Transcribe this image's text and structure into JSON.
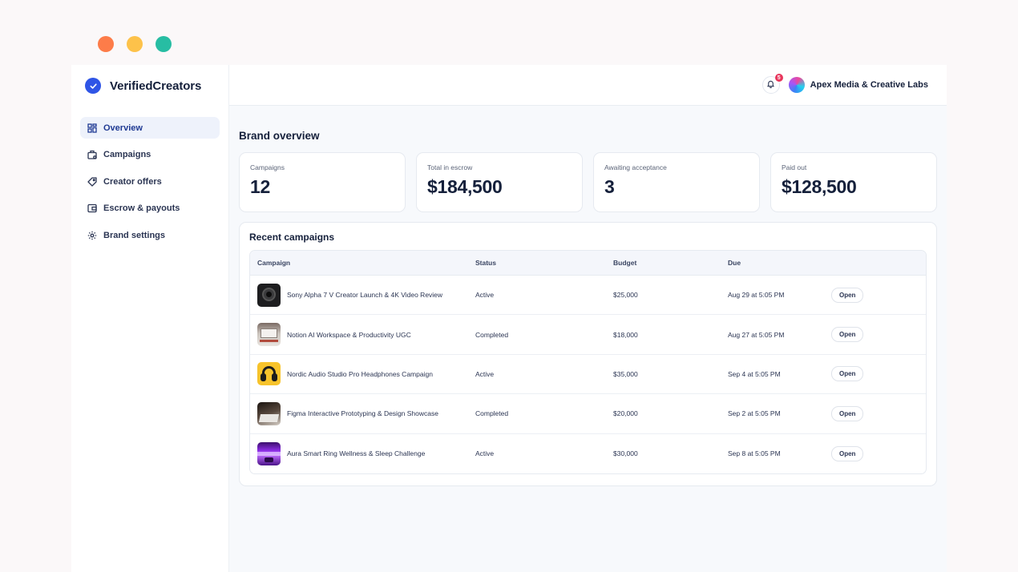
{
  "window_controls": {
    "colors": [
      "#fd7c49",
      "#fdc24a",
      "#27bda3"
    ]
  },
  "sidebar": {
    "brand": {
      "name": "VerifiedCreators",
      "icon": "check-circle-icon"
    },
    "items": [
      {
        "label": "Overview",
        "icon": "grid-icon",
        "active": true
      },
      {
        "label": "Campaigns",
        "icon": "briefcase-icon",
        "active": false
      },
      {
        "label": "Creator offers",
        "icon": "tag-icon",
        "active": false
      },
      {
        "label": "Escrow & payouts",
        "icon": "wallet-icon",
        "active": false
      },
      {
        "label": "Brand settings",
        "icon": "gear-icon",
        "active": false
      }
    ]
  },
  "topbar": {
    "notifications_count": "5",
    "org_name": "Apex Media & Creative Labs"
  },
  "page": {
    "title": "Brand overview"
  },
  "stats": [
    {
      "label": "Campaigns",
      "value": "12"
    },
    {
      "label": "Total in escrow",
      "value": "$184,500"
    },
    {
      "label": "Awaiting acceptance",
      "value": "3"
    },
    {
      "label": "Paid out",
      "value": "$128,500"
    }
  ],
  "recent": {
    "title": "Recent campaigns",
    "columns": {
      "campaign": "Campaign",
      "status": "Status",
      "budget": "Budget",
      "due": "Due"
    },
    "rows": [
      {
        "name": "Sony Alpha 7 V Creator Launch & 4K Video Review",
        "status": "Active",
        "budget": "$25,000",
        "due": "Aug 29 at 5:05 PM",
        "action": "Open",
        "thumb": "camera"
      },
      {
        "name": "Notion AI Workspace & Productivity UGC",
        "status": "Completed",
        "budget": "$18,000",
        "due": "Aug 27 at 5:05 PM",
        "action": "Open",
        "thumb": "desk"
      },
      {
        "name": "Nordic Audio Studio Pro Headphones Campaign",
        "status": "Active",
        "budget": "$35,000",
        "due": "Sep 4 at 5:05 PM",
        "action": "Open",
        "thumb": "headphones"
      },
      {
        "name": "Figma Interactive Prototyping & Design Showcase",
        "status": "Completed",
        "budget": "$20,000",
        "due": "Sep 2 at 5:05 PM",
        "action": "Open",
        "thumb": "laptop"
      },
      {
        "name": "Aura Smart Ring Wellness & Sleep Challenge",
        "status": "Active",
        "budget": "$30,000",
        "due": "Sep 8 at 5:05 PM",
        "action": "Open",
        "thumb": "ring"
      }
    ]
  }
}
